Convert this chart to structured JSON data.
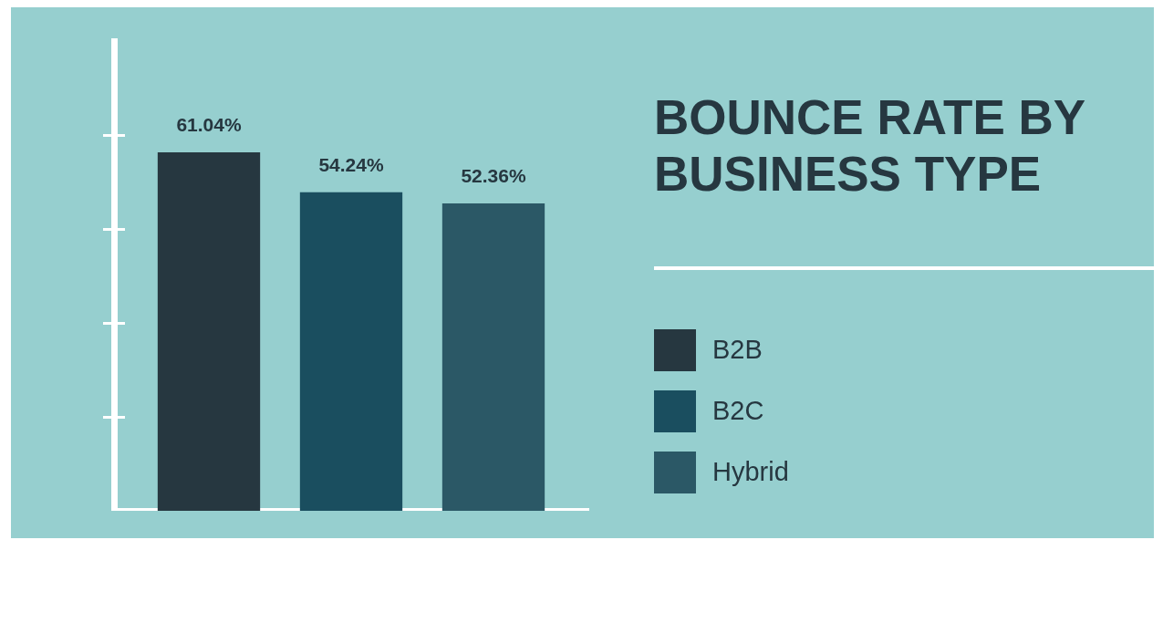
{
  "chart_data": {
    "type": "bar",
    "title": "BOUNCE RATE BY BUSINESS TYPE",
    "categories": [
      null
    ],
    "series": [
      {
        "name": "B2B",
        "color": "#263740",
        "values": [
          61.04
        ],
        "value_labels": [
          "61.04%"
        ]
      },
      {
        "name": "B2C",
        "color": "#1a4e5f",
        "values": [
          54.24
        ],
        "value_labels": [
          "54.24%"
        ]
      },
      {
        "name": "Hybrid",
        "color": "#2b5866",
        "values": [
          52.36
        ],
        "value_labels": [
          "52.36%"
        ]
      }
    ],
    "tick_labels": false,
    "grid": false,
    "legend": "right"
  }
}
